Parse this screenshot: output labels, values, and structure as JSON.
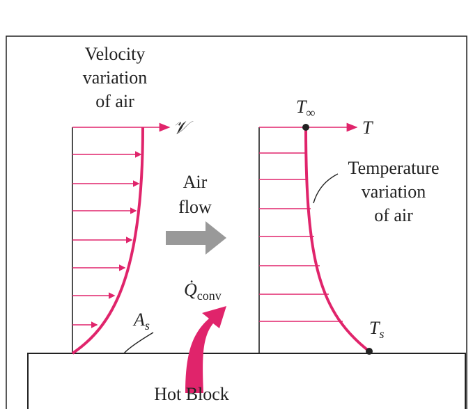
{
  "velocity_label": [
    "Velocity",
    "variation",
    "of air"
  ],
  "velocity_symbol": "𝒱",
  "temperature_far": {
    "symbol": "T",
    "subscript": "∞"
  },
  "temperature_axis": "T",
  "temperature_label": [
    "Temperature",
    "variation",
    "of air"
  ],
  "flow_label": [
    "Air",
    "flow"
  ],
  "heat_label": {
    "symbol": "Q̇",
    "subscript": "conv"
  },
  "surface_label": {
    "symbol": "A",
    "subscript": "s"
  },
  "surface_temperature": {
    "symbol": "T",
    "subscript": "s"
  },
  "block_label": "Hot Block"
}
